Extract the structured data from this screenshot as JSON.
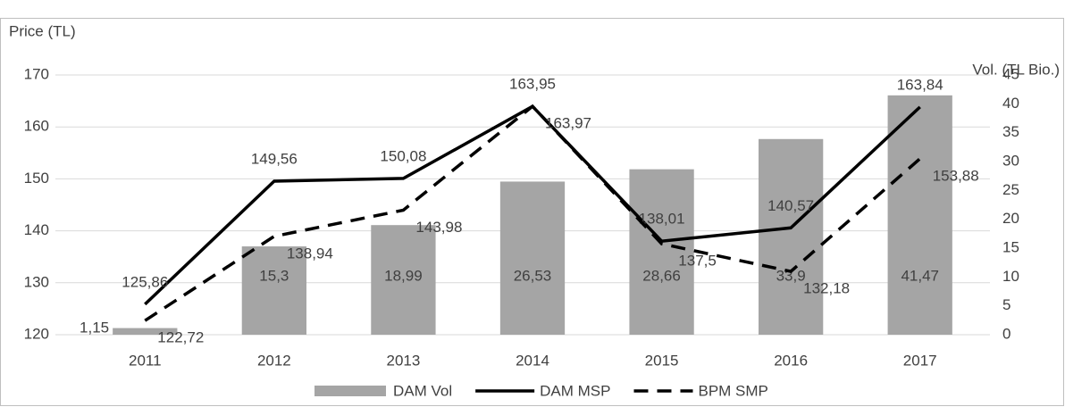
{
  "chart_data": {
    "type": "combo",
    "y_label": "Price (TL)",
    "y2_label": "Vol. (TL Bio.)",
    "categories": [
      "2011",
      "2012",
      "2013",
      "2014",
      "2015",
      "2016",
      "2017"
    ],
    "ylim": [
      120,
      170
    ],
    "yticks": [
      120,
      130,
      140,
      150,
      160,
      170
    ],
    "y2lim": [
      0,
      45
    ],
    "y2ticks": [
      0,
      5,
      10,
      15,
      20,
      25,
      30,
      35,
      40,
      45
    ],
    "grid": true,
    "legend": "bottom",
    "series": [
      {
        "name": "DAM Vol",
        "type": "bar",
        "axis": "y2",
        "color": "#a5a5a5",
        "values": [
          1.15,
          15.3,
          18.99,
          26.53,
          28.66,
          33.9,
          41.47
        ],
        "value_labels": [
          "1,15",
          "15,3",
          "18,99",
          "26,53",
          "28,66",
          "33,9",
          "41,47"
        ]
      },
      {
        "name": "DAM MSP",
        "type": "line",
        "color": "#000000",
        "dashed": false,
        "values": [
          125.86,
          149.56,
          150.08,
          163.95,
          138.01,
          140.57,
          163.84
        ],
        "value_labels": [
          "125,86",
          "149,56",
          "150,08",
          "163,95",
          "138,01",
          "140,57",
          "163,84"
        ]
      },
      {
        "name": "BPM SMP",
        "type": "line",
        "color": "#000000",
        "dashed": true,
        "values": [
          122.72,
          138.94,
          143.98,
          163.97,
          137.5,
          132.18,
          153.88
        ],
        "value_labels": [
          "122,72",
          "138,94",
          "143,98",
          "163,97",
          "137,5",
          "132,18",
          "153,88"
        ]
      }
    ]
  }
}
